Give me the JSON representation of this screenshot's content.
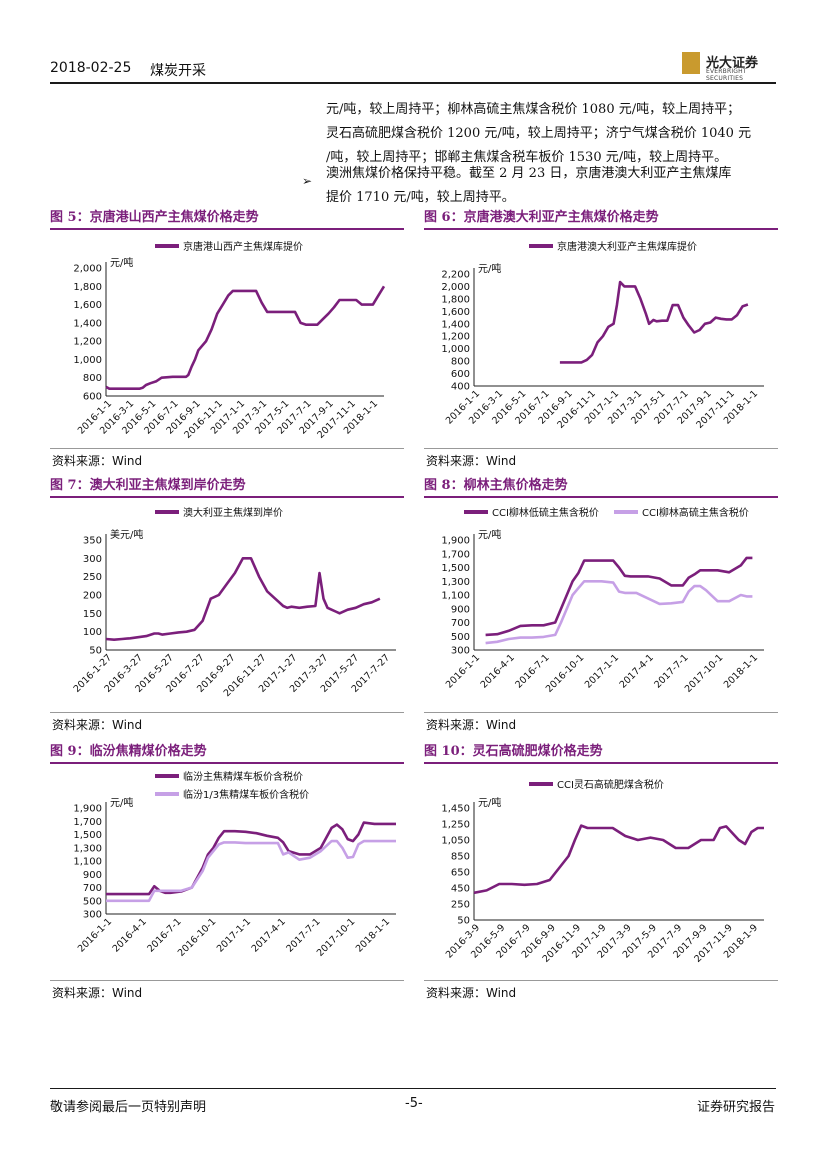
{
  "header": {
    "date": "2018-02-25",
    "sector": "煤炭开采"
  },
  "logo": {
    "cn": "光大证券",
    "en": "EVERBRIGHT SECURITIES"
  },
  "body_text": {
    "lines": [
      "元/吨，较上周持平；柳林高硫主焦煤含税价 1080 元/吨，较上周持平；",
      "灵石高硫肥煤含税价 1200 元/吨，较上周持平；济宁气煤含税价 1040 元",
      "/吨，较上周持平；邯郸主焦煤含税车板价 1530 元/吨，较上周持平。"
    ],
    "bullet_symbol": "➢",
    "bullet_lines": [
      "澳洲焦煤价格保持平稳。截至 2 月 23 日，京唐港澳大利亚产主焦煤库",
      "提价 1710 元/吨，较上周持平。"
    ]
  },
  "figures": [
    {
      "title": "图 5：京唐港山西产主焦煤价格走势",
      "source": "资料来源：Wind",
      "chart_data": {
        "type": "line",
        "unit": "元/吨",
        "ylim": [
          600,
          2000
        ],
        "yticks": [
          "2,000",
          "1,800",
          "1,600",
          "1,400",
          "1,200",
          "1,000",
          "800",
          "600"
        ],
        "xticks": [
          "2016-1-1",
          "2016-3-1",
          "2016-5-1",
          "2016-7-1",
          "2016-9-1",
          "2016-11-1",
          "2017-1-1",
          "2017-3-1",
          "2017-5-1",
          "2017-7-1",
          "2017-9-1",
          "2017-11-1",
          "2018-1-1"
        ],
        "series": [
          {
            "name": "京唐港山西产主焦煤库提价",
            "color": "#7b1f7b",
            "x": [
              0,
              0.3,
              1,
              2,
              3,
              3.3,
              3.6,
              4,
              4.5,
              5,
              6,
              6.3,
              6.6,
              6.9,
              7.2,
              7.4,
              7.7,
              8,
              8.3,
              9,
              9.5,
              10,
              10.5,
              11,
              11.4,
              12,
              12.5,
              13,
              13.5,
              14,
              14.5,
              15,
              15.5,
              16,
              16.5,
              17,
              17.5,
              18,
              18.5,
              19,
              19.5,
              20,
              20.5,
              21,
              21.5,
              22,
              22.5,
              23,
              23.5,
              24,
              24.5,
              25
            ],
            "values": [
              700,
              680,
              680,
              680,
              680,
              690,
              720,
              740,
              760,
              800,
              810,
              810,
              810,
              810,
              810,
              830,
              920,
              1000,
              1100,
              1200,
              1330,
              1500,
              1600,
              1700,
              1750,
              1750,
              1750,
              1750,
              1750,
              1620,
              1520,
              1520,
              1520,
              1520,
              1520,
              1520,
              1400,
              1380,
              1380,
              1380,
              1440,
              1500,
              1570,
              1650,
              1650,
              1650,
              1650,
              1600,
              1600,
              1600,
              1700,
              1800
            ]
          }
        ],
        "x_range": [
          0,
          25
        ]
      }
    },
    {
      "title": "图 6：京唐港澳大利亚产主焦煤价格走势",
      "source": "资料来源：Wind",
      "chart_data": {
        "type": "line",
        "unit": "元/吨",
        "ylim": [
          400,
          2200
        ],
        "yticks": [
          "2,200",
          "2,000",
          "1,800",
          "1,600",
          "1,400",
          "1,200",
          "1,000",
          "800",
          "600",
          "400"
        ],
        "xticks": [
          "2016-1-1",
          "2016-3-1",
          "2016-5-1",
          "2016-7-1",
          "2016-9-1",
          "2016-11-1",
          "2017-1-1",
          "2017-3-1",
          "2017-5-1",
          "2017-7-1",
          "2017-9-1",
          "2017-11-1",
          "2018-1-1"
        ],
        "series": [
          {
            "name": "京唐港澳大利亚产主焦煤库提价",
            "color": "#7b1f7b",
            "x": [
              8,
              9,
              10,
              10.5,
              11,
              11.5,
              12,
              12.5,
              13,
              13.3,
              13.6,
              14,
              14.5,
              15,
              15.5,
              16,
              16.3,
              16.7,
              17,
              17.5,
              18,
              18.5,
              19,
              19.5,
              20,
              20.5,
              21,
              21.5,
              22,
              22.5,
              23,
              23.5,
              24,
              24.5,
              25,
              25.5
            ],
            "values": [
              780,
              780,
              780,
              820,
              900,
              1100,
              1200,
              1350,
              1400,
              1700,
              2070,
              2000,
              2000,
              2000,
              1800,
              1560,
              1400,
              1460,
              1440,
              1450,
              1450,
              1700,
              1700,
              1500,
              1370,
              1260,
              1300,
              1400,
              1420,
              1500,
              1480,
              1470,
              1470,
              1540,
              1680,
              1710
            ]
          }
        ],
        "x_range": [
          0,
          27
        ]
      }
    },
    {
      "title": "图 7：澳大利亚主焦煤到岸价走势",
      "source": "资料来源：Wind",
      "chart_data": {
        "type": "line",
        "unit": "美元/吨",
        "ylim": [
          50,
          350
        ],
        "yticks": [
          "350",
          "300",
          "250",
          "200",
          "150",
          "100",
          "50"
        ],
        "xticks": [
          "2016-1-27",
          "2016-3-27",
          "2016-5-27",
          "2016-7-27",
          "2016-9-27",
          "2016-11-27",
          "2017-1-27",
          "2017-3-27",
          "2017-5-27",
          "2017-7-27"
        ],
        "series": [
          {
            "name": "澳大利亚主焦煤到岸价",
            "color": "#7b1f7b",
            "x": [
              0,
              1,
              2,
              3,
              4,
              5,
              6,
              6.5,
              7,
              8,
              9,
              10,
              11,
              12,
              13,
              14,
              15,
              16,
              17,
              18,
              19,
              20,
              21,
              21.5,
              22,
              22.5,
              23,
              24,
              25,
              26,
              26.5,
              27,
              27.5,
              28,
              28.5,
              29,
              30,
              31,
              32,
              33,
              34
            ],
            "values": [
              80,
              78,
              80,
              82,
              85,
              88,
              95,
              95,
              92,
              95,
              98,
              100,
              105,
              130,
              190,
              200,
              230,
              260,
              300,
              300,
              250,
              210,
              190,
              180,
              170,
              165,
              168,
              165,
              168,
              170,
              260,
              190,
              165,
              160,
              155,
              150,
              160,
              165,
              175,
              180,
              190
            ]
          }
        ],
        "x_range": [
          0,
          36
        ]
      }
    },
    {
      "title": "图 8：柳林主焦价格走势",
      "source": "资料来源：Wind",
      "chart_data": {
        "type": "line",
        "unit": "元/吨",
        "ylim": [
          300,
          1900
        ],
        "yticks": [
          "1,900",
          "1,700",
          "1,500",
          "1,300",
          "1,100",
          "900",
          "700",
          "500",
          "300"
        ],
        "xticks": [
          "2016-1-1",
          "2016-4-1",
          "2016-7-1",
          "2016-10-1",
          "2017-1-1",
          "2017-4-1",
          "2017-7-1",
          "2017-10-1",
          "2018-1-1"
        ],
        "series": [
          {
            "name": "CCI柳林低硫主焦含税价",
            "color": "#7b1f7b",
            "x": [
              1,
              2,
              3,
              4,
              5,
              6,
              7,
              7.5,
              8,
              8.5,
              9,
              9.5,
              10,
              11,
              12,
              12.5,
              13,
              13.5,
              14,
              15,
              16,
              17,
              18,
              18.5,
              19,
              19.5,
              20,
              21,
              22,
              23,
              23.5,
              24
            ],
            "values": [
              520,
              530,
              580,
              650,
              660,
              660,
              700,
              900,
              1100,
              1300,
              1420,
              1600,
              1600,
              1600,
              1600,
              1500,
              1380,
              1370,
              1370,
              1370,
              1340,
              1240,
              1240,
              1350,
              1400,
              1460,
              1460,
              1460,
              1430,
              1530,
              1640,
              1640
            ]
          },
          {
            "name": "CCI柳林高硫主焦含税价",
            "color": "#c6a0e6",
            "x": [
              1,
              2,
              3,
              4,
              5,
              6,
              7,
              7.5,
              8,
              8.5,
              9,
              9.5,
              10,
              11,
              12,
              12.5,
              13,
              13.5,
              14,
              15,
              16,
              17,
              18,
              18.5,
              19,
              19.5,
              20,
              21,
              22,
              23,
              23.5,
              24
            ],
            "values": [
              400,
              420,
              460,
              480,
              480,
              490,
              520,
              700,
              900,
              1100,
              1200,
              1300,
              1300,
              1300,
              1280,
              1150,
              1130,
              1130,
              1130,
              1050,
              970,
              980,
              1000,
              1150,
              1230,
              1230,
              1170,
              1010,
              1010,
              1100,
              1080,
              1080
            ]
          }
        ],
        "x_range": [
          0,
          25
        ]
      }
    },
    {
      "title": "图 9：临汾焦精煤价格走势",
      "source": "资料来源：Wind",
      "chart_data": {
        "type": "line",
        "unit": "元/吨",
        "ylim": [
          300,
          1900
        ],
        "yticks": [
          "1,900",
          "1,700",
          "1,500",
          "1,300",
          "1,100",
          "900",
          "700",
          "500",
          "300"
        ],
        "xticks": [
          "2016-1-1",
          "2016-4-1",
          "2016-7-1",
          "2016-10-1",
          "2017-1-1",
          "2017-4-1",
          "2017-7-1",
          "2017-10-1",
          "2018-1-1"
        ],
        "series": [
          {
            "name": "临汾主焦精煤车板价含税价",
            "color": "#7b1f7b",
            "x": [
              0,
              1,
              2,
              3,
              4,
              4.5,
              5,
              5.5,
              6,
              7,
              8,
              9,
              9.5,
              10,
              10.5,
              11,
              12,
              13,
              14,
              15,
              16,
              16.5,
              17,
              18,
              19,
              20,
              21,
              21.5,
              22,
              22.5,
              23,
              23.5,
              24,
              25,
              26,
              26.5,
              27
            ],
            "values": [
              600,
              600,
              600,
              600,
              600,
              720,
              650,
              620,
              620,
              640,
              700,
              1000,
              1200,
              1300,
              1450,
              1550,
              1550,
              1540,
              1520,
              1480,
              1450,
              1380,
              1250,
              1200,
              1200,
              1300,
              1600,
              1650,
              1580,
              1430,
              1400,
              1500,
              1680,
              1660,
              1660,
              1660,
              1660
            ]
          },
          {
            "name": "临汾1/3焦精煤车板价含税价",
            "color": "#c6a0e6",
            "x": [
              0,
              1,
              2,
              3,
              4,
              4.5,
              5,
              5.5,
              6,
              7,
              8,
              9,
              9.5,
              10,
              10.5,
              11,
              12,
              13,
              14,
              15,
              16,
              16.5,
              17,
              18,
              19,
              20,
              21,
              21.5,
              22,
              22.5,
              23,
              23.5,
              24,
              25,
              26,
              26.5,
              27
            ],
            "values": [
              500,
              500,
              500,
              500,
              500,
              650,
              650,
              650,
              650,
              650,
              700,
              950,
              1150,
              1250,
              1350,
              1380,
              1380,
              1370,
              1370,
              1370,
              1370,
              1200,
              1230,
              1120,
              1150,
              1250,
              1400,
              1400,
              1300,
              1150,
              1160,
              1350,
              1400,
              1400,
              1400,
              1400,
              1400
            ]
          }
        ],
        "x_range": [
          0,
          27
        ]
      }
    },
    {
      "title": "图 10：灵石高硫肥煤价格走势",
      "source": "资料来源：Wind",
      "chart_data": {
        "type": "line",
        "unit": "元/吨",
        "ylim": [
          50,
          1450
        ],
        "yticks": [
          "1,450",
          "1,250",
          "1,050",
          "850",
          "650",
          "450",
          "250",
          "50"
        ],
        "xticks": [
          "2016-3-9",
          "2016-5-9",
          "2016-7-9",
          "2016-9-9",
          "2016-11-9",
          "2017-1-9",
          "2017-3-9",
          "2017-5-9",
          "2017-7-9",
          "2017-9-9",
          "2017-11-9",
          "2018-1-9"
        ],
        "series": [
          {
            "name": "CCI灵石高硫肥煤含税价",
            "color": "#7b1f7b",
            "x": [
              0,
              1,
              2,
              3,
              4,
              5,
              6,
              7,
              7.5,
              8,
              8.5,
              9,
              10,
              11,
              12,
              13,
              14,
              15,
              16,
              17,
              18,
              19,
              19.5,
              20,
              21,
              21.5,
              22,
              22.5,
              23
            ],
            "values": [
              390,
              420,
              500,
              500,
              490,
              500,
              550,
              750,
              850,
              1050,
              1230,
              1200,
              1200,
              1200,
              1100,
              1050,
              1080,
              1050,
              950,
              950,
              1050,
              1050,
              1200,
              1220,
              1050,
              1000,
              1150,
              1200,
              1200
            ]
          }
        ],
        "x_range": [
          0,
          23
        ]
      }
    }
  ],
  "footer": {
    "left": "敬请参阅最后一页特别声明",
    "center": "-5-",
    "right": "证券研究报告"
  }
}
